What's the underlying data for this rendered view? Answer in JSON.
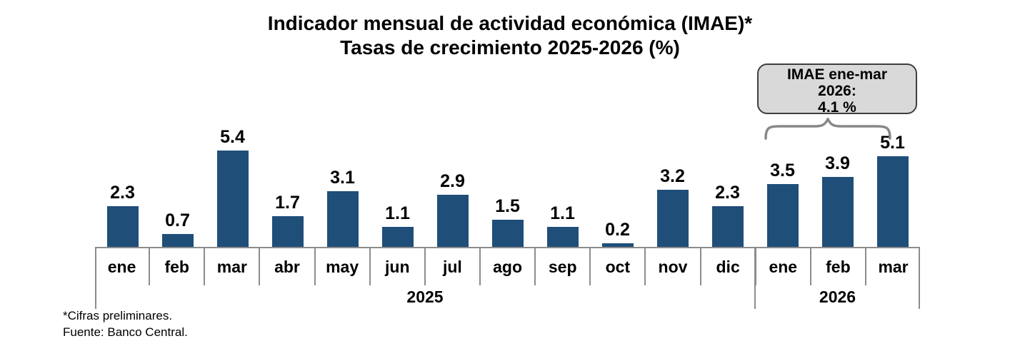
{
  "title": {
    "line1": "Indicador mensual de actividad económica (IMAE)*",
    "line2": "Tasas de crecimiento 2025-2026 (%)"
  },
  "callout": {
    "line1": "IMAE ene-mar",
    "line2": "2026:",
    "line3": "4.1 %"
  },
  "footnotes": {
    "note1": "*Cifras preliminares.",
    "note2": "Fuente: Banco Central."
  },
  "colors": {
    "bar": "#1F4E79",
    "axis": "#8C8C8C",
    "brace": "#888888",
    "callout_fill": "#D9D9D9",
    "callout_border": "#3F3F3F"
  },
  "chart_data": {
    "type": "bar",
    "title": "Indicador mensual de actividad económica (IMAE)* — Tasas de crecimiento 2025-2026 (%)",
    "categories": [
      "ene",
      "feb",
      "mar",
      "abr",
      "may",
      "jun",
      "jul",
      "ago",
      "sep",
      "oct",
      "nov",
      "dic",
      "ene",
      "feb",
      "mar"
    ],
    "values": [
      2.3,
      0.7,
      5.4,
      1.7,
      3.1,
      1.1,
      2.9,
      1.5,
      1.1,
      0.2,
      3.2,
      2.3,
      3.5,
      3.9,
      5.1
    ],
    "year_groups": [
      {
        "label": "2025",
        "span": 12
      },
      {
        "label": "2026",
        "span": 3
      }
    ],
    "xlabel": "",
    "ylabel": "",
    "ylim": [
      0,
      5.4
    ],
    "grid": false,
    "legend": false,
    "data_labels": true,
    "bar_color": "#1F4E79",
    "annotation": "IMAE ene-mar 2026: 4.1 %"
  }
}
